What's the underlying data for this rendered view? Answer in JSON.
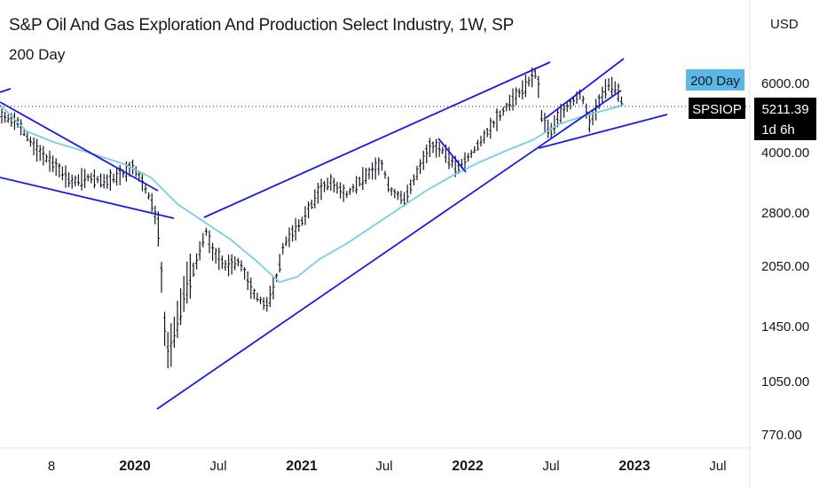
{
  "header": {
    "title": "S&P Oil And Gas Exploration And Production Select Industry, 1W, SP",
    "subtitle": "200 Day"
  },
  "chart_data": {
    "type": "ohlc-line",
    "currency": "USD",
    "y_scale": "log",
    "ylim": [
      770,
      9000
    ],
    "y_ticks": [
      "6000.00",
      "4000.00",
      "2800.00",
      "2050.00",
      "1450.00",
      "1050.00",
      "770.00"
    ],
    "x_ticks": [
      "8",
      "2020",
      "Jul",
      "2021",
      "Jul",
      "2022",
      "Jul",
      "2023",
      "Jul"
    ],
    "x_ticks_bold": [
      false,
      true,
      false,
      true,
      false,
      true,
      false,
      true,
      false
    ],
    "price_bars_label": "SPSIOP",
    "price_close": [
      5000,
      4700,
      4300,
      3900,
      3400,
      3300,
      3450,
      3300,
      3000,
      3200,
      3400,
      3300,
      3100,
      3600,
      2900,
      2500,
      1150,
      1450,
      1900,
      2000,
      2400,
      2200,
      2150,
      2100,
      1950,
      1700,
      1550,
      1800,
      2300,
      2700,
      3000,
      3200,
      3300,
      3400,
      3600,
      3700,
      3300,
      2950,
      3300,
      3700,
      3800,
      4000,
      3800,
      4200,
      4500,
      4600,
      4700,
      5000,
      5400,
      6500,
      5000,
      4300,
      4800,
      5300,
      4800,
      5600,
      6100,
      5800,
      5211.39
    ],
    "ma_line_label": "200 Day",
    "ma_values": [
      5000,
      4600,
      4200,
      3900,
      3600,
      3400,
      3200,
      2700,
      2300,
      2050,
      1950,
      2050,
      2300,
      2700,
      3050,
      3400,
      3700,
      4000,
      4500,
      4900,
      5100,
      5250
    ],
    "last_value": "5211.39",
    "countdown": "1d 6h",
    "line_colors": {
      "ma": "#7ecbe8",
      "trend": "#1a1ae6",
      "bars": "#131722",
      "tag_ma": "#5ab7e6",
      "tag_price": "#000000"
    }
  }
}
